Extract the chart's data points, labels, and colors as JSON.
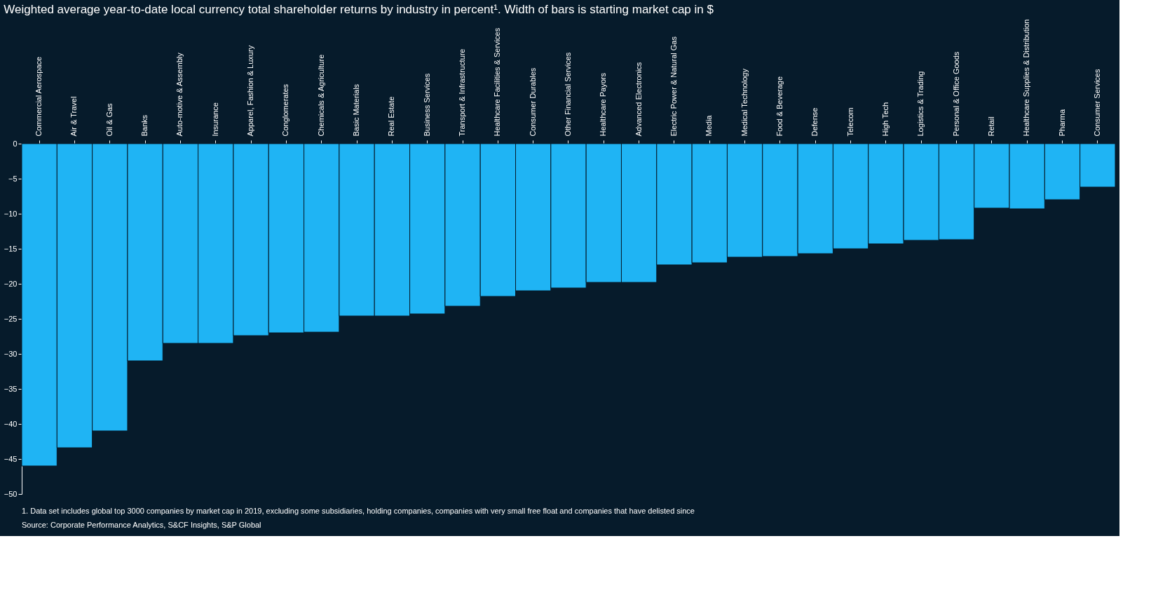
{
  "chart_data": {
    "type": "bar",
    "title": "Weighted average year-to-date local currency total shareholder returns by industry in percent¹. Width of bars is starting market cap in $",
    "categories": [
      "Commercial Aerospace",
      "Air & Travel",
      "Oil & Gas",
      "Banks",
      "Auto-motive & Assembly",
      "Insurance",
      "Apparel, Fashion & Luxury",
      "Conglomerates",
      "Chemicals & Agriculture",
      "Basic Materials",
      "Real Estate",
      "Business Services",
      "Transport & Infrastructure",
      "Healthcare Facilities & Services",
      "Consumer Durables",
      "Other Financial Services",
      "Healthcare Payors",
      "Advanced Electronics",
      "Electric Power & Natural Gas",
      "Media",
      "Medical Technology",
      "Food & Beverage",
      "Defense",
      "Telecom",
      "High Tech",
      "Logistics & Trading",
      "Personal & Office Goods",
      "Retail",
      "Healthcare Supplies & Distribution",
      "Pharma",
      "Consumer Services"
    ],
    "values": [
      -46.0,
      -43.4,
      -41.0,
      -31.0,
      -28.5,
      -28.5,
      -27.4,
      -27.0,
      -26.9,
      -24.6,
      -24.6,
      -24.3,
      -23.2,
      -21.8,
      -21.0,
      -20.6,
      -19.8,
      -19.8,
      -17.3,
      -17.0,
      -16.2,
      -16.1,
      -15.7,
      -15.0,
      -14.3,
      -13.8,
      -13.7,
      -9.2,
      -9.3,
      -8.0,
      -6.2
    ],
    "color": "#1fb4f4",
    "ylim": [
      -50,
      0
    ],
    "yticks": [
      0,
      -5,
      -10,
      -15,
      -20,
      -25,
      -30,
      -35,
      -40,
      -45,
      -50
    ],
    "grid": false,
    "annotations": [
      "1.   Data set includes global top 3000 companies by market cap in 2019, excluding some subsidiaries, holding companies, companies with very small free float and companies that have delisted since",
      "Source: Corporate Performance Analytics, S&CF Insights, S&P Global"
    ]
  }
}
